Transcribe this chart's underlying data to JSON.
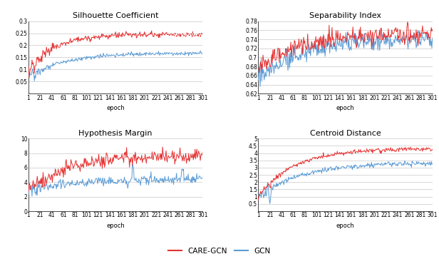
{
  "title_sc": "Silhouette Coefficient",
  "title_si": "Separability Index",
  "title_hm": "Hypothesis Margin",
  "title_cd": "Centroid Distance",
  "xlabel": "epoch",
  "legend_care": "CARE-GCN",
  "legend_gcn": "GCN",
  "color_care": "#e63030",
  "color_gcn": "#5b9bd5",
  "n_epochs": 301,
  "background_color": "#ffffff",
  "sc_ylim": [
    0,
    0.3
  ],
  "sc_yticks": [
    0.05,
    0.1,
    0.15,
    0.2,
    0.25,
    0.3
  ],
  "sc_yticklabels": [
    "0.05",
    "0.1",
    "0.15",
    "0.2",
    "0.25",
    "0.3"
  ],
  "sc_xticks": [
    1,
    21,
    41,
    61,
    81,
    101,
    121,
    141,
    161,
    181,
    201,
    221,
    241,
    261,
    281,
    301
  ],
  "sc_xticklabels": [
    "1",
    "21",
    "41",
    "61",
    "81",
    "101",
    "121",
    "141",
    "161",
    "181",
    "201",
    "221",
    "241",
    "261",
    "281",
    "301"
  ],
  "si_ylim": [
    0.62,
    0.78
  ],
  "si_yticks": [
    0.62,
    0.64,
    0.66,
    0.68,
    0.7,
    0.72,
    0.74,
    0.76,
    0.78
  ],
  "si_yticklabels": [
    "0.62",
    "0.64",
    "0.66",
    "0.68",
    "0.7",
    "0.72",
    "0.74",
    "0.76",
    "0.78"
  ],
  "si_xticks": [
    1,
    21,
    41,
    61,
    81,
    101,
    121,
    141,
    161,
    181,
    201,
    221,
    241,
    261,
    281,
    301
  ],
  "si_xticklabels": [
    "1",
    "21",
    "41",
    "61",
    "81",
    "101",
    "121",
    "141",
    "161",
    "181",
    "201",
    "221",
    "241",
    "261",
    "281",
    "301"
  ],
  "hm_ylim": [
    0,
    10
  ],
  "hm_yticks": [
    0,
    2,
    4,
    6,
    8,
    10
  ],
  "hm_yticklabels": [
    "0",
    "2",
    "4",
    "6",
    "8",
    "10"
  ],
  "hm_xticks": [
    1,
    21,
    41,
    61,
    81,
    101,
    121,
    141,
    161,
    181,
    201,
    221,
    241,
    261,
    281,
    301
  ],
  "hm_xticklabels": [
    "1",
    "21",
    "41",
    "61",
    "81",
    "101",
    "121",
    "141",
    "161",
    "181",
    "201",
    "221",
    "241",
    "261",
    "281",
    "301"
  ],
  "cd_ylim": [
    0,
    5
  ],
  "cd_yticks": [
    0.5,
    1,
    1.5,
    2,
    2.5,
    3,
    3.5,
    4,
    4.5,
    5
  ],
  "cd_yticklabels": [
    "0.5",
    "1",
    "1.5",
    "2",
    "2.5",
    "3",
    "3.5",
    "4",
    "4.5",
    "5"
  ],
  "cd_xticks": [
    1,
    21,
    41,
    61,
    81,
    101,
    121,
    141,
    161,
    181,
    201,
    221,
    241,
    261,
    281,
    301
  ],
  "cd_xticklabels": [
    "1",
    "21",
    "41",
    "61",
    "81",
    "101",
    "121",
    "141",
    "161",
    "181",
    "201",
    "221",
    "241",
    "261",
    "281",
    "301"
  ]
}
